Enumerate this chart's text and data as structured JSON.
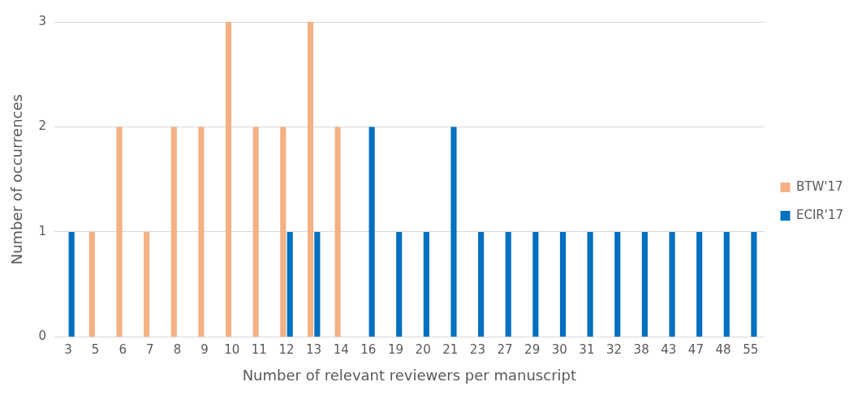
{
  "chart_data": {
    "type": "bar",
    "xlabel": "Number of relevant reviewers per manuscript",
    "ylabel": "Number of occurrences",
    "categories": [
      "3",
      "5",
      "6",
      "7",
      "8",
      "9",
      "10",
      "11",
      "12",
      "13",
      "14",
      "16",
      "19",
      "20",
      "21",
      "23",
      "27",
      "29",
      "30",
      "31",
      "32",
      "38",
      "43",
      "47",
      "48",
      "55"
    ],
    "series": [
      {
        "name": "BTW'17",
        "color": "#f4b183",
        "values": [
          null,
          1,
          2,
          1,
          2,
          2,
          3,
          2,
          2,
          3,
          2,
          null,
          null,
          null,
          null,
          null,
          null,
          null,
          null,
          null,
          null,
          null,
          null,
          null,
          null,
          null
        ]
      },
      {
        "name": "ECIR'17",
        "color": "#0070c0",
        "values": [
          1,
          null,
          null,
          null,
          null,
          null,
          null,
          null,
          1,
          1,
          null,
          2,
          1,
          1,
          2,
          1,
          1,
          1,
          1,
          1,
          1,
          1,
          1,
          1,
          1,
          1
        ]
      }
    ],
    "ylim": [
      0,
      3
    ],
    "yticks": [
      0,
      1,
      2,
      3
    ],
    "grid": "y",
    "legend": "right"
  }
}
